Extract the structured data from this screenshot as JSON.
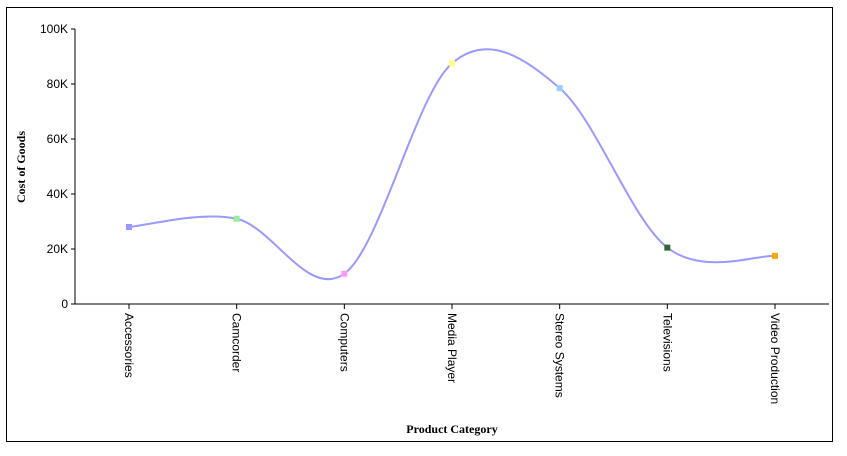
{
  "chart_data": {
    "type": "line",
    "title": "",
    "xlabel": "Product Category",
    "ylabel": "Cost of Goods",
    "categories": [
      "Accessories",
      "Camcorder",
      "Computers",
      "Media Player",
      "Stereo Systems",
      "Televisions",
      "Video Production"
    ],
    "series": [
      {
        "values": [
          28000,
          31000,
          11000,
          87500,
          78500,
          20500,
          17500
        ],
        "color": "#9999ff",
        "marker_colors": [
          "#9999ff",
          "#99ee99",
          "#ff99ff",
          "#ffff88",
          "#99ccff",
          "#336633",
          "#ffa500"
        ]
      }
    ],
    "ylim": [
      0,
      100000
    ],
    "y_ticks": [
      0,
      20000,
      40000,
      60000,
      80000,
      100000
    ],
    "y_tick_labels": [
      "0",
      "20K",
      "40K",
      "60K",
      "80K",
      "100K"
    ],
    "smooth": true,
    "grid": false,
    "legend": "none"
  }
}
